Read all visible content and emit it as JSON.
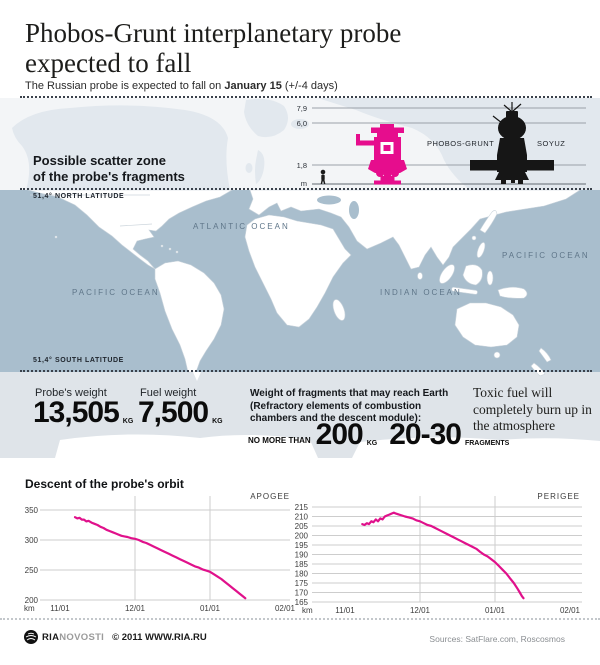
{
  "header": {
    "title_line1": "Phobos-Grunt interplanetary probe",
    "title_line2": "expected to fall",
    "subtitle_prefix": "The Russian probe is expected to fall on ",
    "subtitle_date": "January 15",
    "subtitle_suffix": " (+/-4 days)"
  },
  "size_comparison": {
    "scale_marks": [
      "7,9",
      "6,0",
      "1,8",
      "m"
    ],
    "phobos_grunt_label": "PHOBOS-GRUNT",
    "soyuz_label": "SOYUZ"
  },
  "map": {
    "scatter_zone_line1": "Possible scatter zone",
    "scatter_zone_line2": "of the probe's fragments",
    "north_latitude_label": "51,4° NORTH LATITUDE",
    "south_latitude_label": "51,4° SOUTH LATITUDE",
    "labels": {
      "atlantic": "ATLANTIC OCEAN",
      "pacific_west": "PACIFIC OCEAN",
      "indian": "INDIAN OCEAN",
      "pacific_east": "PACIFIC OCEAN"
    }
  },
  "stats": {
    "probe_weight_label": "Probe's weight",
    "probe_weight_value": "13,505",
    "probe_weight_unit": "KG",
    "fuel_weight_label": "Fuel weight",
    "fuel_weight_value": "7,500",
    "fuel_weight_unit": "KG",
    "fragments_heading": "Weight of fragments that may reach Earth (Refractory elements of combustion chambers and the descent module):",
    "no_more_than_label": "NO MORE THAN",
    "fragments_weight_value": "200",
    "fragments_weight_unit": "KG",
    "fragments_count_value": "20-30",
    "fragments_count_unit": "FRAGMENTS",
    "toxic_note": "Toxic fuel will completely burn up in the atmosphere"
  },
  "charts_section": {
    "title": "Descent of the probe's orbit"
  },
  "chart_data": [
    {
      "type": "line",
      "name": "APOGEE",
      "color": "#e0118b",
      "y_unit": "km",
      "x_ticks": [
        "11/01",
        "12/01",
        "01/01",
        "02/01"
      ],
      "y_ticks": [
        350,
        300,
        250,
        200
      ],
      "ylim": [
        200,
        350
      ],
      "grid": true,
      "legend_position": "top-right",
      "points": [
        [
          0.2,
          338
        ],
        [
          0.23,
          336
        ],
        [
          0.26,
          337
        ],
        [
          0.29,
          334
        ],
        [
          0.32,
          334
        ],
        [
          0.35,
          331
        ],
        [
          0.38,
          332
        ],
        [
          0.42,
          329
        ],
        [
          0.46,
          327
        ],
        [
          0.5,
          325
        ],
        [
          0.54,
          322
        ],
        [
          0.58,
          320
        ],
        [
          0.62,
          317
        ],
        [
          0.66,
          315
        ],
        [
          0.7,
          313
        ],
        [
          0.74,
          311
        ],
        [
          0.78,
          309
        ],
        [
          0.82,
          307
        ],
        [
          0.86,
          306
        ],
        [
          0.9,
          305
        ],
        [
          0.95,
          303
        ],
        [
          1.0,
          302
        ],
        [
          1.05,
          300
        ],
        [
          1.1,
          297
        ],
        [
          1.15,
          295
        ],
        [
          1.2,
          292
        ],
        [
          1.25,
          289
        ],
        [
          1.3,
          286
        ],
        [
          1.35,
          283
        ],
        [
          1.4,
          280
        ],
        [
          1.45,
          277
        ],
        [
          1.5,
          274
        ],
        [
          1.55,
          271
        ],
        [
          1.6,
          268
        ],
        [
          1.65,
          265
        ],
        [
          1.7,
          262
        ],
        [
          1.75,
          259
        ],
        [
          1.8,
          256
        ],
        [
          1.85,
          254
        ],
        [
          1.9,
          251
        ],
        [
          1.95,
          249
        ],
        [
          2.0,
          247
        ],
        [
          2.05,
          243
        ],
        [
          2.1,
          239
        ],
        [
          2.15,
          235
        ],
        [
          2.2,
          230
        ],
        [
          2.25,
          225
        ],
        [
          2.3,
          220
        ],
        [
          2.35,
          215
        ],
        [
          2.4,
          210
        ],
        [
          2.44,
          206
        ],
        [
          2.47,
          203
        ]
      ]
    },
    {
      "type": "line",
      "name": "PERIGEE",
      "color": "#e0118b",
      "y_unit": "km",
      "x_ticks": [
        "11/01",
        "12/01",
        "01/01",
        "02/01"
      ],
      "y_ticks": [
        215,
        210,
        205,
        200,
        195,
        190,
        185,
        180,
        175,
        170,
        165
      ],
      "ylim": [
        165,
        215
      ],
      "grid": true,
      "legend_position": "top-right",
      "points": [
        [
          0.23,
          206
        ],
        [
          0.26,
          205.5
        ],
        [
          0.29,
          206.5
        ],
        [
          0.32,
          206
        ],
        [
          0.35,
          207.5
        ],
        [
          0.38,
          207
        ],
        [
          0.41,
          208.5
        ],
        [
          0.44,
          207.5
        ],
        [
          0.47,
          209
        ],
        [
          0.5,
          208.5
        ],
        [
          0.53,
          210
        ],
        [
          0.56,
          210.5
        ],
        [
          0.59,
          211
        ],
        [
          0.62,
          211.5
        ],
        [
          0.65,
          212
        ],
        [
          0.68,
          211.5
        ],
        [
          0.72,
          211
        ],
        [
          0.76,
          210.5
        ],
        [
          0.8,
          210
        ],
        [
          0.85,
          209.5
        ],
        [
          0.9,
          209
        ],
        [
          0.95,
          208
        ],
        [
          1.0,
          207.5
        ],
        [
          1.05,
          206.5
        ],
        [
          1.1,
          205.5
        ],
        [
          1.15,
          205
        ],
        [
          1.2,
          204
        ],
        [
          1.25,
          203
        ],
        [
          1.3,
          202
        ],
        [
          1.35,
          201
        ],
        [
          1.4,
          200
        ],
        [
          1.45,
          199
        ],
        [
          1.5,
          198
        ],
        [
          1.55,
          197
        ],
        [
          1.6,
          196
        ],
        [
          1.65,
          195
        ],
        [
          1.7,
          194
        ],
        [
          1.75,
          193
        ],
        [
          1.8,
          191.5
        ],
        [
          1.85,
          190
        ],
        [
          1.9,
          189
        ],
        [
          1.95,
          187.5
        ],
        [
          2.0,
          186
        ],
        [
          2.05,
          184
        ],
        [
          2.1,
          182
        ],
        [
          2.15,
          180
        ],
        [
          2.2,
          177.5
        ],
        [
          2.25,
          175
        ],
        [
          2.3,
          172
        ],
        [
          2.33,
          170
        ],
        [
          2.36,
          168
        ],
        [
          2.38,
          167
        ]
      ]
    }
  ],
  "footer": {
    "brand_ria": "RIA",
    "brand_novosti": "NOVOSTI",
    "copyright": "© 2011 WWW.RIA.RU",
    "sources": "Sources: SatFlare.com, Roscosmos"
  },
  "colors": {
    "accent_magenta": "#e0118b",
    "ocean": "#a9becd",
    "soyuz_black": "#161616"
  }
}
